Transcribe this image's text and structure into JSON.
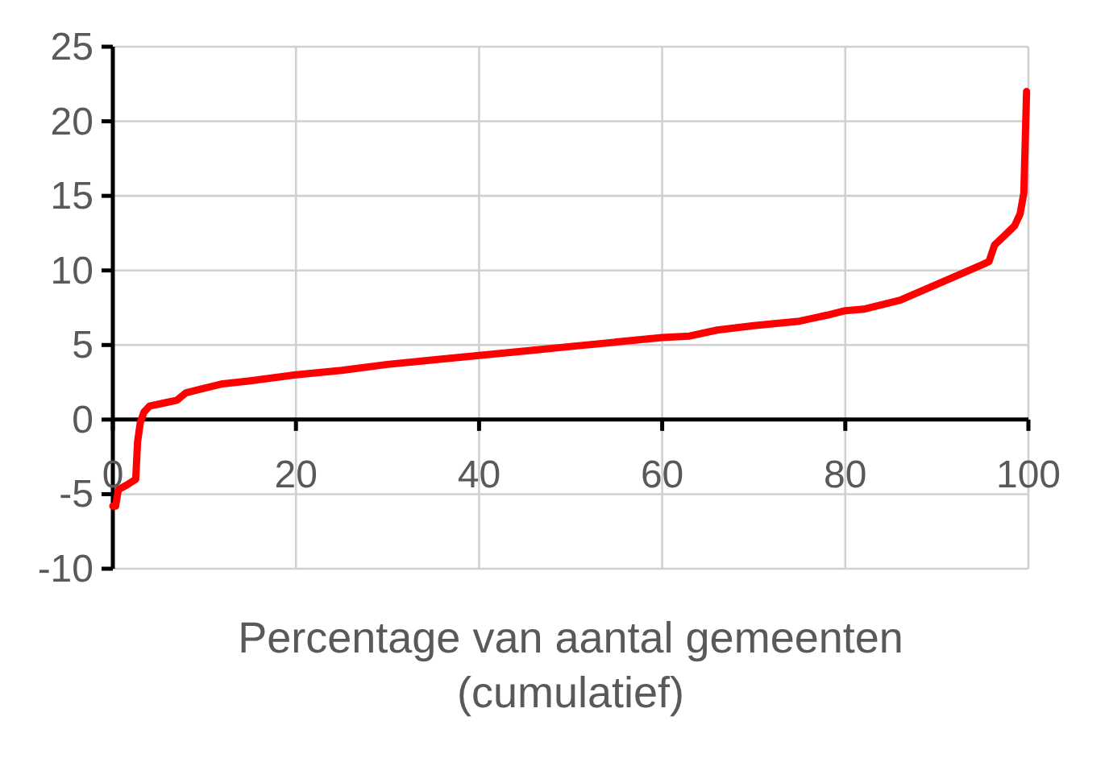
{
  "chart_data": {
    "type": "line",
    "xlabel": "Percentage van aantal gemeenten (cumulatief)",
    "xlim": [
      0,
      100
    ],
    "ylim": [
      -10,
      25
    ],
    "xticks": [
      0,
      20,
      40,
      60,
      80,
      100
    ],
    "yticks": [
      -10,
      -5,
      0,
      5,
      10,
      15,
      20,
      25
    ],
    "grid": true,
    "marker": "none",
    "line_style": "solid",
    "series": [
      {
        "color": "#ff0000",
        "x": [
          0,
          0.3,
          0.6,
          1.5,
          2.5,
          2.7,
          3,
          3.4,
          4,
          5.5,
          7,
          8,
          10,
          12,
          15,
          20,
          25,
          30,
          35,
          40,
          45,
          50,
          55,
          60,
          63,
          66,
          70,
          75,
          78,
          80,
          82,
          86,
          89,
          92,
          95,
          95.7,
          96.3,
          97.5,
          98.5,
          99.1,
          99.5,
          99.8
        ],
        "values": [
          -5.8,
          -5.8,
          -4.7,
          -4.4,
          -4.0,
          -1.5,
          -0.2,
          0.5,
          0.9,
          1.1,
          1.3,
          1.8,
          2.1,
          2.4,
          2.6,
          3.0,
          3.3,
          3.7,
          4.0,
          4.3,
          4.6,
          4.9,
          5.2,
          5.5,
          5.6,
          6.0,
          6.3,
          6.6,
          7.0,
          7.3,
          7.4,
          8.0,
          8.8,
          9.6,
          10.4,
          10.6,
          11.7,
          12.4,
          13,
          13.8,
          15.2,
          22
        ]
      }
    ]
  }
}
